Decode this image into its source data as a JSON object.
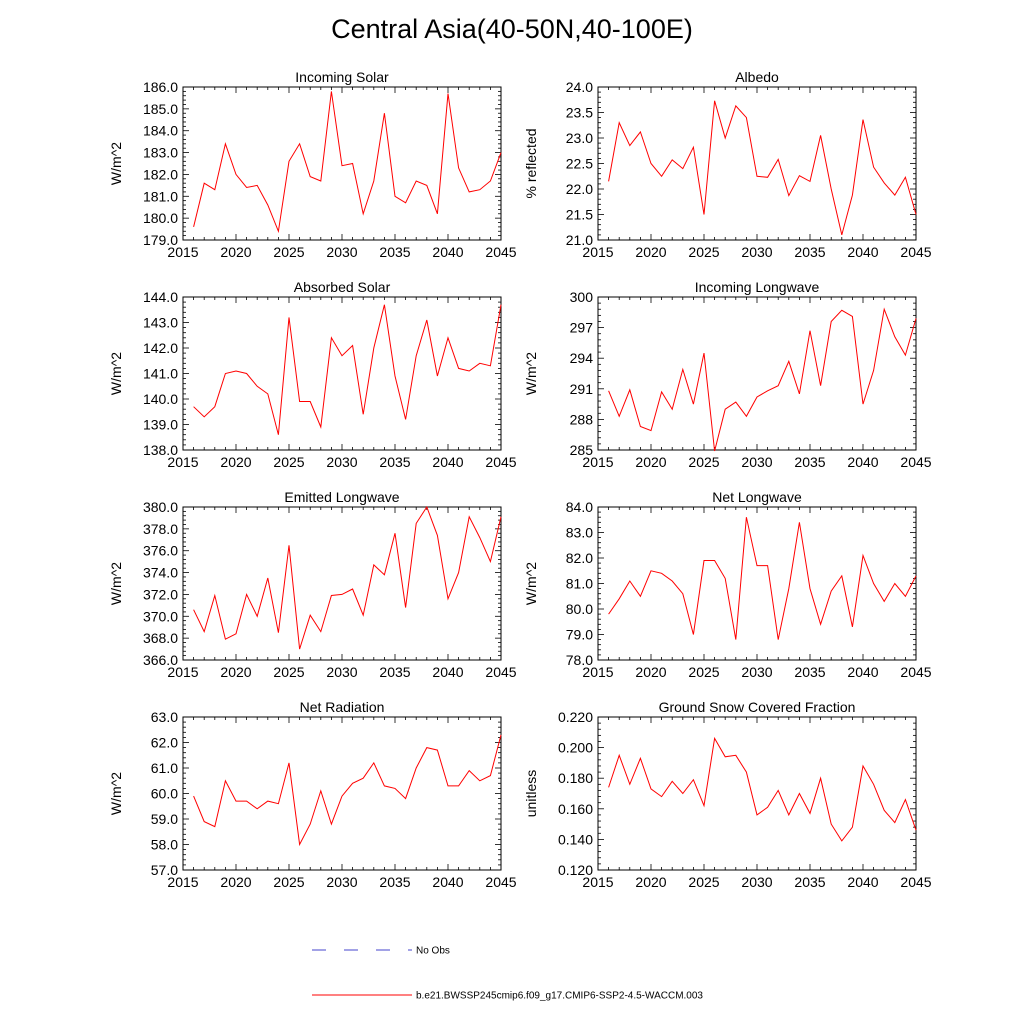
{
  "title": "Central Asia(40-50N,40-100E)",
  "colors": {
    "model_line": "#ff0000",
    "obs_line": "#4444cc",
    "axis": "#000000"
  },
  "legend": {
    "obs_label": "No Obs",
    "model_label": "b.e21.BWSSP245cmip6.f09_g17.CMIP6-SSP2-4.5-WACCM.003"
  },
  "chart_data": [
    {
      "type": "line",
      "title": "Incoming Solar",
      "ylabel": "W/m^2",
      "xlim": [
        2015,
        2045
      ],
      "ylim": [
        179.0,
        186.0
      ],
      "xticks": [
        "2015",
        "2020",
        "2025",
        "2030",
        "2035",
        "2040",
        "2045"
      ],
      "yticks": [
        "179.0",
        "180.0",
        "181.0",
        "182.0",
        "183.0",
        "184.0",
        "185.0",
        "186.0"
      ],
      "x": [
        2016,
        2017,
        2018,
        2019,
        2020,
        2021,
        2022,
        2023,
        2024,
        2025,
        2026,
        2027,
        2028,
        2029,
        2030,
        2031,
        2032,
        2033,
        2034,
        2035,
        2036,
        2037,
        2038,
        2039,
        2040,
        2041,
        2042,
        2043,
        2044,
        2045
      ],
      "series": [
        {
          "values": [
            179.6,
            181.6,
            181.3,
            183.4,
            182.0,
            181.4,
            181.5,
            180.6,
            179.4,
            182.6,
            183.4,
            181.9,
            181.7,
            185.8,
            182.4,
            182.5,
            180.2,
            181.7,
            184.8,
            181.0,
            180.7,
            181.7,
            181.5,
            180.2,
            185.7,
            182.3,
            181.2,
            181.3,
            181.7,
            183.0
          ]
        }
      ]
    },
    {
      "type": "line",
      "title": "Albedo",
      "ylabel": "% reflected",
      "xlim": [
        2015,
        2045
      ],
      "ylim": [
        21.0,
        24.0
      ],
      "xticks": [
        "2015",
        "2020",
        "2025",
        "2030",
        "2035",
        "2040",
        "2045"
      ],
      "yticks": [
        "21.0",
        "21.5",
        "22.0",
        "22.5",
        "23.0",
        "23.5",
        "24.0"
      ],
      "x": [
        2016,
        2017,
        2018,
        2019,
        2020,
        2021,
        2022,
        2023,
        2024,
        2025,
        2026,
        2027,
        2028,
        2029,
        2030,
        2031,
        2032,
        2033,
        2034,
        2035,
        2036,
        2037,
        2038,
        2039,
        2040,
        2041,
        2042,
        2043,
        2044,
        2045
      ],
      "series": [
        {
          "values": [
            22.15,
            23.3,
            22.85,
            23.12,
            22.5,
            22.25,
            22.57,
            22.4,
            22.82,
            21.5,
            23.73,
            23.0,
            23.63,
            23.4,
            22.25,
            22.23,
            22.58,
            21.87,
            22.26,
            22.15,
            23.05,
            22.0,
            21.1,
            21.88,
            23.36,
            22.43,
            22.12,
            21.88,
            22.23,
            21.5
          ]
        }
      ]
    },
    {
      "type": "line",
      "title": "Absorbed Solar",
      "ylabel": "W/m^2",
      "xlim": [
        2015,
        2045
      ],
      "ylim": [
        138.0,
        144.0
      ],
      "xticks": [
        "2015",
        "2020",
        "2025",
        "2030",
        "2035",
        "2040",
        "2045"
      ],
      "yticks": [
        "138.0",
        "139.0",
        "140.0",
        "141.0",
        "142.0",
        "143.0",
        "144.0"
      ],
      "x": [
        2016,
        2017,
        2018,
        2019,
        2020,
        2021,
        2022,
        2023,
        2024,
        2025,
        2026,
        2027,
        2028,
        2029,
        2030,
        2031,
        2032,
        2033,
        2034,
        2035,
        2036,
        2037,
        2038,
        2039,
        2040,
        2041,
        2042,
        2043,
        2044,
        2045
      ],
      "series": [
        {
          "values": [
            139.7,
            139.3,
            139.7,
            141.0,
            141.1,
            141.0,
            140.5,
            140.2,
            138.6,
            143.2,
            139.9,
            139.9,
            138.9,
            142.4,
            141.7,
            142.1,
            139.4,
            142.0,
            143.7,
            140.9,
            139.2,
            141.7,
            143.1,
            140.9,
            142.4,
            141.2,
            141.1,
            141.4,
            141.3,
            143.7
          ]
        }
      ]
    },
    {
      "type": "line",
      "title": "Incoming Longwave",
      "ylabel": "W/m^2",
      "xlim": [
        2015,
        2045
      ],
      "ylim": [
        285,
        300
      ],
      "xticks": [
        "2015",
        "2020",
        "2025",
        "2030",
        "2035",
        "2040",
        "2045"
      ],
      "yticks": [
        "285",
        "288",
        "291",
        "294",
        "297",
        "300"
      ],
      "x": [
        2016,
        2017,
        2018,
        2019,
        2020,
        2021,
        2022,
        2023,
        2024,
        2025,
        2026,
        2027,
        2028,
        2029,
        2030,
        2031,
        2032,
        2033,
        2034,
        2035,
        2036,
        2037,
        2038,
        2039,
        2040,
        2041,
        2042,
        2043,
        2044,
        2045
      ],
      "series": [
        {
          "values": [
            290.8,
            288.3,
            290.9,
            287.3,
            286.9,
            290.7,
            289.0,
            292.9,
            289.5,
            294.5,
            284.9,
            289.0,
            289.7,
            288.3,
            290.2,
            290.8,
            291.3,
            293.7,
            290.5,
            296.7,
            291.3,
            297.6,
            298.7,
            298.1,
            289.5,
            292.8,
            298.8,
            296.1,
            294.3,
            297.9
          ]
        }
      ]
    },
    {
      "type": "line",
      "title": "Emitted Longwave",
      "ylabel": "W/m^2",
      "xlim": [
        2015,
        2045
      ],
      "ylim": [
        366.0,
        380.0
      ],
      "xticks": [
        "2015",
        "2020",
        "2025",
        "2030",
        "2035",
        "2040",
        "2045"
      ],
      "yticks": [
        "366.0",
        "368.0",
        "370.0",
        "372.0",
        "374.0",
        "376.0",
        "378.0",
        "380.0"
      ],
      "x": [
        2016,
        2017,
        2018,
        2019,
        2020,
        2021,
        2022,
        2023,
        2024,
        2025,
        2026,
        2027,
        2028,
        2029,
        2030,
        2031,
        2032,
        2033,
        2034,
        2035,
        2036,
        2037,
        2038,
        2039,
        2040,
        2041,
        2042,
        2043,
        2044,
        2045
      ],
      "series": [
        {
          "values": [
            370.6,
            368.6,
            371.9,
            367.9,
            368.4,
            372.0,
            370.0,
            373.5,
            368.5,
            376.5,
            367.0,
            370.1,
            368.6,
            371.9,
            372.0,
            372.5,
            370.1,
            374.7,
            373.8,
            377.6,
            370.8,
            378.5,
            380.0,
            377.4,
            371.6,
            374.0,
            379.1,
            377.2,
            375.0,
            379.1
          ]
        }
      ]
    },
    {
      "type": "line",
      "title": "Net Longwave",
      "ylabel": "W/m^2",
      "xlim": [
        2015,
        2045
      ],
      "ylim": [
        78.0,
        84.0
      ],
      "xticks": [
        "2015",
        "2020",
        "2025",
        "2030",
        "2035",
        "2040",
        "2045"
      ],
      "yticks": [
        "78.0",
        "79.0",
        "80.0",
        "81.0",
        "82.0",
        "83.0",
        "84.0"
      ],
      "x": [
        2016,
        2017,
        2018,
        2019,
        2020,
        2021,
        2022,
        2023,
        2024,
        2025,
        2026,
        2027,
        2028,
        2029,
        2030,
        2031,
        2032,
        2033,
        2034,
        2035,
        2036,
        2037,
        2038,
        2039,
        2040,
        2041,
        2042,
        2043,
        2044,
        2045
      ],
      "series": [
        {
          "values": [
            79.8,
            80.4,
            81.1,
            80.5,
            81.5,
            81.4,
            81.1,
            80.6,
            79.0,
            81.9,
            81.9,
            81.2,
            78.8,
            83.6,
            81.7,
            81.7,
            78.8,
            80.8,
            83.4,
            80.8,
            79.4,
            80.7,
            81.3,
            79.3,
            82.1,
            81.0,
            80.3,
            81.0,
            80.5,
            81.3
          ]
        }
      ]
    },
    {
      "type": "line",
      "title": "Net Radiation",
      "ylabel": "W/m^2",
      "xlim": [
        2015,
        2045
      ],
      "ylim": [
        57.0,
        63.0
      ],
      "xticks": [
        "2015",
        "2020",
        "2025",
        "2030",
        "2035",
        "2040",
        "2045"
      ],
      "yticks": [
        "57.0",
        "58.0",
        "59.0",
        "60.0",
        "61.0",
        "62.0",
        "63.0"
      ],
      "x": [
        2016,
        2017,
        2018,
        2019,
        2020,
        2021,
        2022,
        2023,
        2024,
        2025,
        2026,
        2027,
        2028,
        2029,
        2030,
        2031,
        2032,
        2033,
        2034,
        2035,
        2036,
        2037,
        2038,
        2039,
        2040,
        2041,
        2042,
        2043,
        2044,
        2045
      ],
      "series": [
        {
          "values": [
            59.9,
            58.9,
            58.7,
            60.5,
            59.7,
            59.7,
            59.4,
            59.7,
            59.6,
            61.2,
            58.0,
            58.8,
            60.1,
            58.8,
            59.9,
            60.4,
            60.6,
            61.2,
            60.3,
            60.2,
            59.8,
            61.0,
            61.8,
            61.7,
            60.3,
            60.3,
            60.9,
            60.5,
            60.7,
            62.3
          ]
        }
      ]
    },
    {
      "type": "line",
      "title": "Ground Snow Covered Fraction",
      "ylabel": "unitless",
      "xlim": [
        2015,
        2045
      ],
      "ylim": [
        0.12,
        0.22
      ],
      "xticks": [
        "2015",
        "2020",
        "2025",
        "2030",
        "2035",
        "2040",
        "2045"
      ],
      "yticks": [
        "0.120",
        "0.140",
        "0.160",
        "0.180",
        "0.200",
        "0.220"
      ],
      "x": [
        2016,
        2017,
        2018,
        2019,
        2020,
        2021,
        2022,
        2023,
        2024,
        2025,
        2026,
        2027,
        2028,
        2029,
        2030,
        2031,
        2032,
        2033,
        2034,
        2035,
        2036,
        2037,
        2038,
        2039,
        2040,
        2041,
        2042,
        2043,
        2044,
        2045
      ],
      "series": [
        {
          "values": [
            0.174,
            0.195,
            0.176,
            0.193,
            0.173,
            0.168,
            0.178,
            0.17,
            0.179,
            0.162,
            0.206,
            0.194,
            0.195,
            0.184,
            0.156,
            0.161,
            0.172,
            0.156,
            0.17,
            0.157,
            0.18,
            0.15,
            0.139,
            0.148,
            0.188,
            0.176,
            0.159,
            0.151,
            0.166,
            0.146
          ]
        }
      ]
    }
  ]
}
